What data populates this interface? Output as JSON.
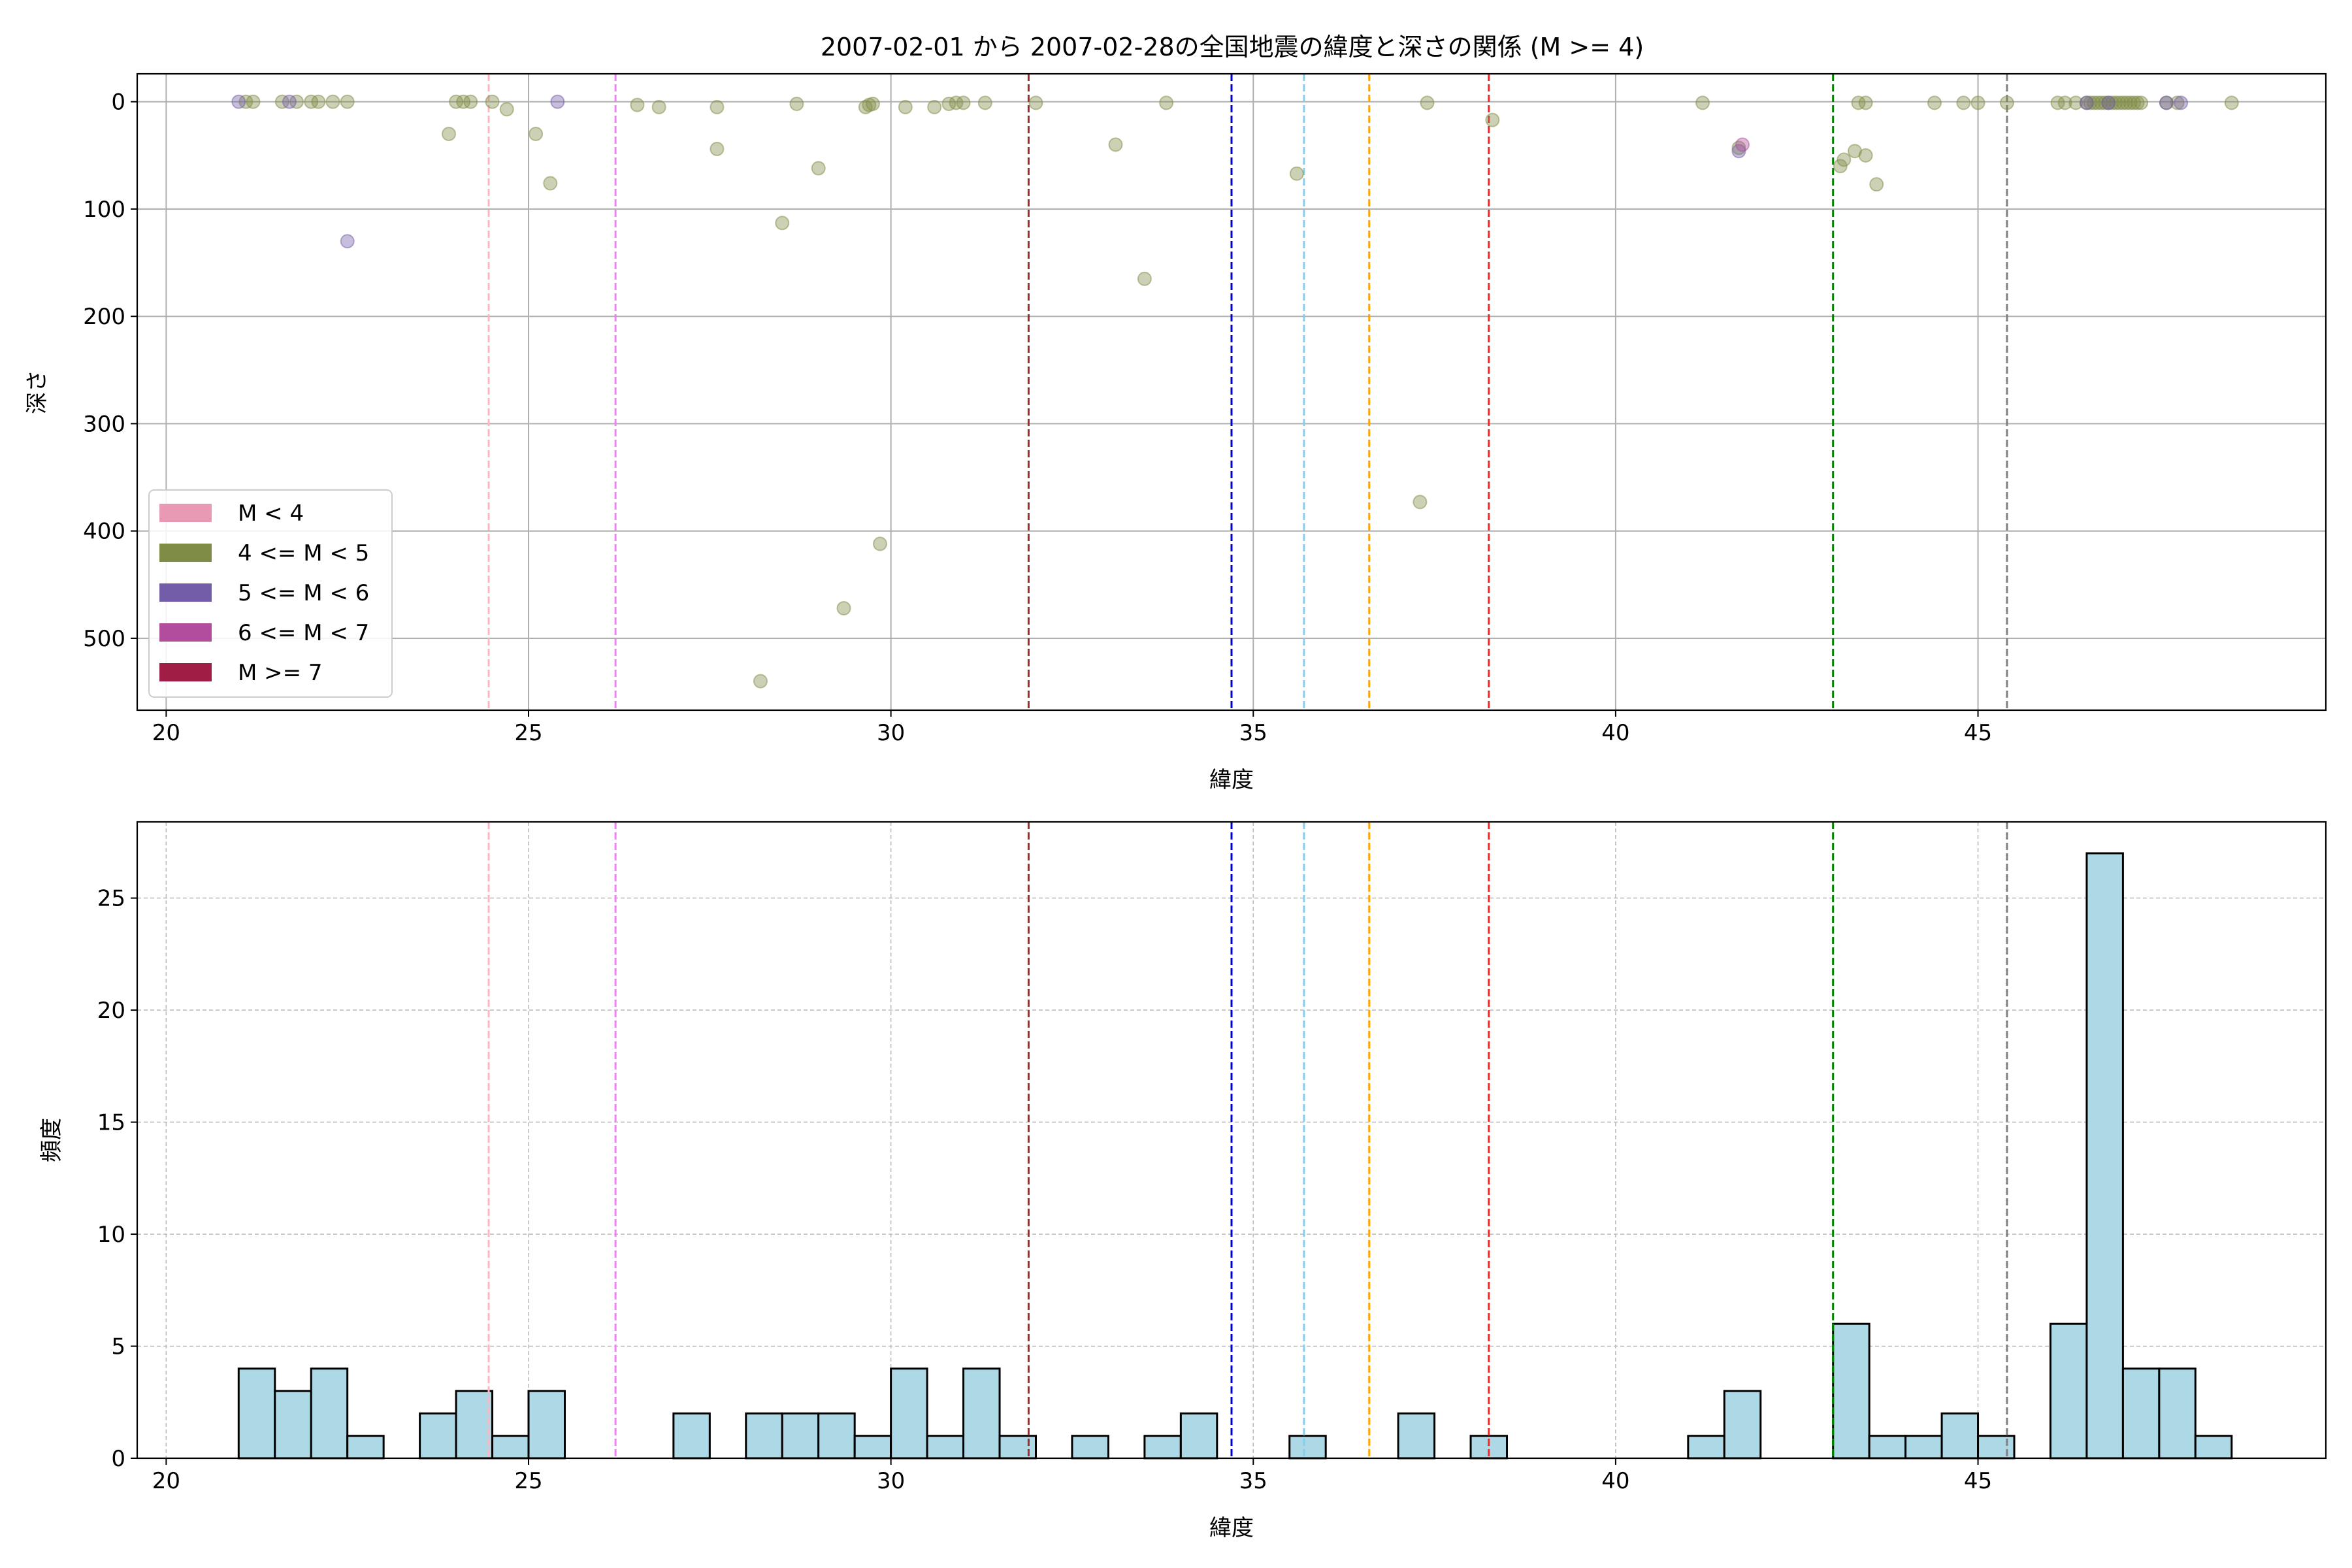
{
  "figure": {
    "title": "2007-02-01 から 2007-02-28の全国地震の緯度と深さの関係 (M >= 4)"
  },
  "chart_data": [
    {
      "type": "scatter",
      "xlabel": "緯度",
      "ylabel": "深さ",
      "xlim": [
        19.6,
        49.8
      ],
      "ylim": [
        567,
        -26
      ],
      "y_inverted": true,
      "xticks": [
        20,
        25,
        30,
        35,
        40,
        45
      ],
      "yticks": [
        0,
        100,
        200,
        300,
        400,
        500
      ],
      "grid": true,
      "legend": {
        "placement": "lower-left",
        "entries": [
          {
            "label": "M < 4",
            "color": "#e899b4"
          },
          {
            "label": "4 <= M < 5",
            "color": "#7f8c46"
          },
          {
            "label": "5 <= M < 6",
            "color": "#735ca8"
          },
          {
            "label": "6 <= M < 7",
            "color": "#b24d9e"
          },
          {
            "label": "M >= 7",
            "color": "#a01d46"
          }
        ]
      },
      "series": [
        {
          "class": "4 <= M < 5",
          "color": "#7f8c46",
          "points": [
            [
              21.1,
              0
            ],
            [
              21.2,
              0
            ],
            [
              21.6,
              0
            ],
            [
              21.8,
              0
            ],
            [
              22.0,
              0
            ],
            [
              22.1,
              0
            ],
            [
              22.3,
              0
            ],
            [
              22.5,
              0
            ],
            [
              23.9,
              30
            ],
            [
              24.0,
              0
            ],
            [
              24.1,
              0
            ],
            [
              24.2,
              0
            ],
            [
              24.5,
              0
            ],
            [
              24.7,
              7
            ],
            [
              25.1,
              30
            ],
            [
              25.3,
              76
            ],
            [
              26.5,
              3
            ],
            [
              26.8,
              5
            ],
            [
              27.6,
              5
            ],
            [
              27.6,
              44
            ],
            [
              28.2,
              540
            ],
            [
              28.5,
              113
            ],
            [
              28.7,
              2
            ],
            [
              29.0,
              62
            ],
            [
              29.35,
              472
            ],
            [
              29.65,
              5
            ],
            [
              29.7,
              3
            ],
            [
              29.75,
              2
            ],
            [
              29.85,
              412
            ],
            [
              30.2,
              5
            ],
            [
              30.6,
              5
            ],
            [
              30.8,
              2
            ],
            [
              30.9,
              1
            ],
            [
              31.0,
              1
            ],
            [
              31.3,
              1
            ],
            [
              32.0,
              1
            ],
            [
              33.1,
              40
            ],
            [
              33.5,
              165
            ],
            [
              33.8,
              1
            ],
            [
              35.6,
              67
            ],
            [
              37.3,
              373
            ],
            [
              37.4,
              1
            ],
            [
              38.3,
              17
            ],
            [
              41.2,
              1
            ],
            [
              41.7,
              43
            ],
            [
              43.1,
              60
            ],
            [
              43.15,
              54
            ],
            [
              43.3,
              46
            ],
            [
              43.35,
              1
            ],
            [
              43.45,
              1
            ],
            [
              43.45,
              50
            ],
            [
              43.6,
              77
            ],
            [
              44.4,
              1
            ],
            [
              44.8,
              1
            ],
            [
              45.0,
              1
            ],
            [
              45.4,
              1
            ],
            [
              46.1,
              1
            ],
            [
              46.2,
              1
            ],
            [
              46.35,
              1
            ],
            [
              46.5,
              1
            ],
            [
              46.55,
              1
            ],
            [
              46.6,
              1
            ],
            [
              46.65,
              1
            ],
            [
              46.7,
              1
            ],
            [
              46.75,
              1
            ],
            [
              46.8,
              1
            ],
            [
              46.85,
              1
            ],
            [
              46.9,
              1
            ],
            [
              46.95,
              1
            ],
            [
              47.0,
              1
            ],
            [
              47.05,
              1
            ],
            [
              47.1,
              1
            ],
            [
              47.15,
              1
            ],
            [
              47.2,
              1
            ],
            [
              47.25,
              1
            ],
            [
              47.6,
              1
            ],
            [
              47.75,
              1
            ],
            [
              48.5,
              1
            ]
          ]
        },
        {
          "class": "5 <= M < 6",
          "color": "#735ca8",
          "points": [
            [
              21.0,
              0
            ],
            [
              21.7,
              0
            ],
            [
              22.5,
              130
            ],
            [
              25.4,
              0
            ],
            [
              41.7,
              46
            ],
            [
              46.5,
              1
            ],
            [
              46.8,
              1
            ],
            [
              47.6,
              1
            ],
            [
              47.8,
              1
            ]
          ]
        },
        {
          "class": "6 <= M < 7",
          "color": "#b24d9e",
          "points": [
            [
              41.75,
              40
            ]
          ]
        }
      ],
      "vlines": [
        {
          "x": 24.45,
          "color": "#ffb6c1"
        },
        {
          "x": 26.2,
          "color": "#ee82ee"
        },
        {
          "x": 31.9,
          "color": "#a52a2a"
        },
        {
          "x": 34.7,
          "color": "#0000cd"
        },
        {
          "x": 35.7,
          "color": "#87ceeb"
        },
        {
          "x": 36.6,
          "color": "#ffa500"
        },
        {
          "x": 38.25,
          "color": "#ff2020"
        },
        {
          "x": 43.0,
          "color": "#008000"
        },
        {
          "x": 45.4,
          "color": "#808080"
        }
      ]
    },
    {
      "type": "bar",
      "subtype": "histogram",
      "xlabel": "緯度",
      "ylabel": "頻度",
      "xlim": [
        19.6,
        49.8
      ],
      "ylim": [
        0,
        28.4
      ],
      "xticks": [
        20,
        25,
        30,
        35,
        40,
        45
      ],
      "yticks": [
        0,
        5,
        10,
        15,
        20,
        25
      ],
      "grid": true,
      "bar_color": "#add8e6",
      "bin_start": 21.0,
      "bin_width": 0.5,
      "values": [
        4,
        3,
        4,
        1,
        0,
        2,
        3,
        1,
        3,
        0,
        0,
        0,
        2,
        0,
        2,
        2,
        2,
        1,
        4,
        1,
        4,
        1,
        0,
        1,
        0,
        1,
        2,
        0,
        0,
        1,
        0,
        0,
        2,
        0,
        1,
        0,
        0,
        0,
        0,
        0,
        1,
        3,
        0,
        0,
        6,
        1,
        1,
        2,
        1,
        0,
        6,
        27,
        4,
        4,
        1
      ],
      "vlines": [
        {
          "x": 24.45,
          "color": "#ffb6c1"
        },
        {
          "x": 26.2,
          "color": "#ee82ee"
        },
        {
          "x": 31.9,
          "color": "#a52a2a"
        },
        {
          "x": 34.7,
          "color": "#0000cd"
        },
        {
          "x": 35.7,
          "color": "#87ceeb"
        },
        {
          "x": 36.6,
          "color": "#ffa500"
        },
        {
          "x": 38.25,
          "color": "#ff2020"
        },
        {
          "x": 43.0,
          "color": "#008000"
        },
        {
          "x": 45.4,
          "color": "#808080"
        }
      ]
    }
  ]
}
